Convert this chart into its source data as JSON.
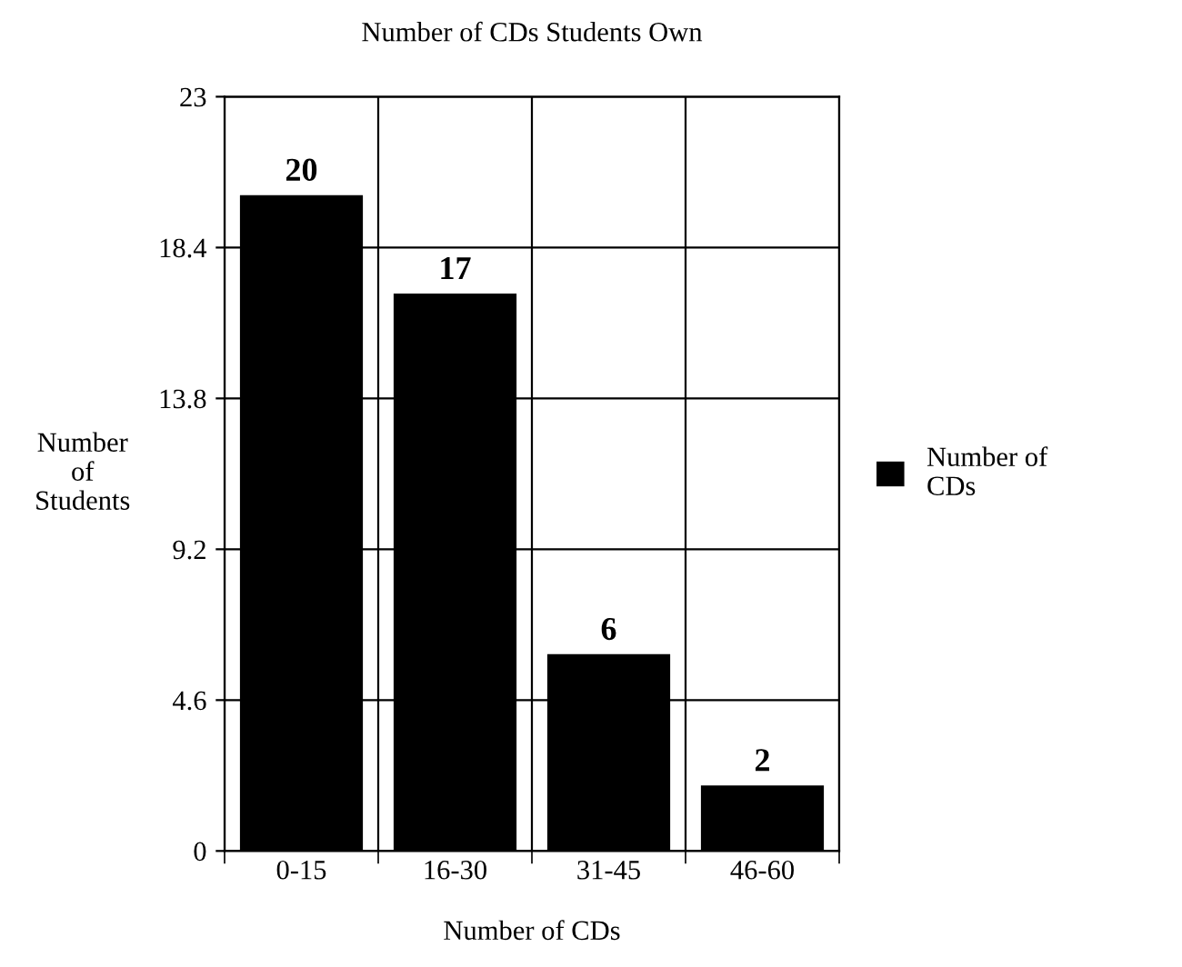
{
  "chart_data": {
    "type": "bar",
    "title": "Number of CDs Students Own",
    "xlabel": "Number of CDs",
    "ylabel": "Number\nof\nStudents",
    "categories": [
      "0-15",
      "16-30",
      "31-45",
      "46-60"
    ],
    "series": [
      {
        "name": "Number of\nCDs",
        "color": "#000000",
        "values": [
          20,
          17,
          6,
          2
        ]
      }
    ],
    "ylim": [
      0,
      23
    ],
    "yticks": [
      0,
      4.6,
      9.2,
      13.8,
      18.4,
      23
    ],
    "grid": true,
    "legend": "right",
    "data_labels": true
  }
}
